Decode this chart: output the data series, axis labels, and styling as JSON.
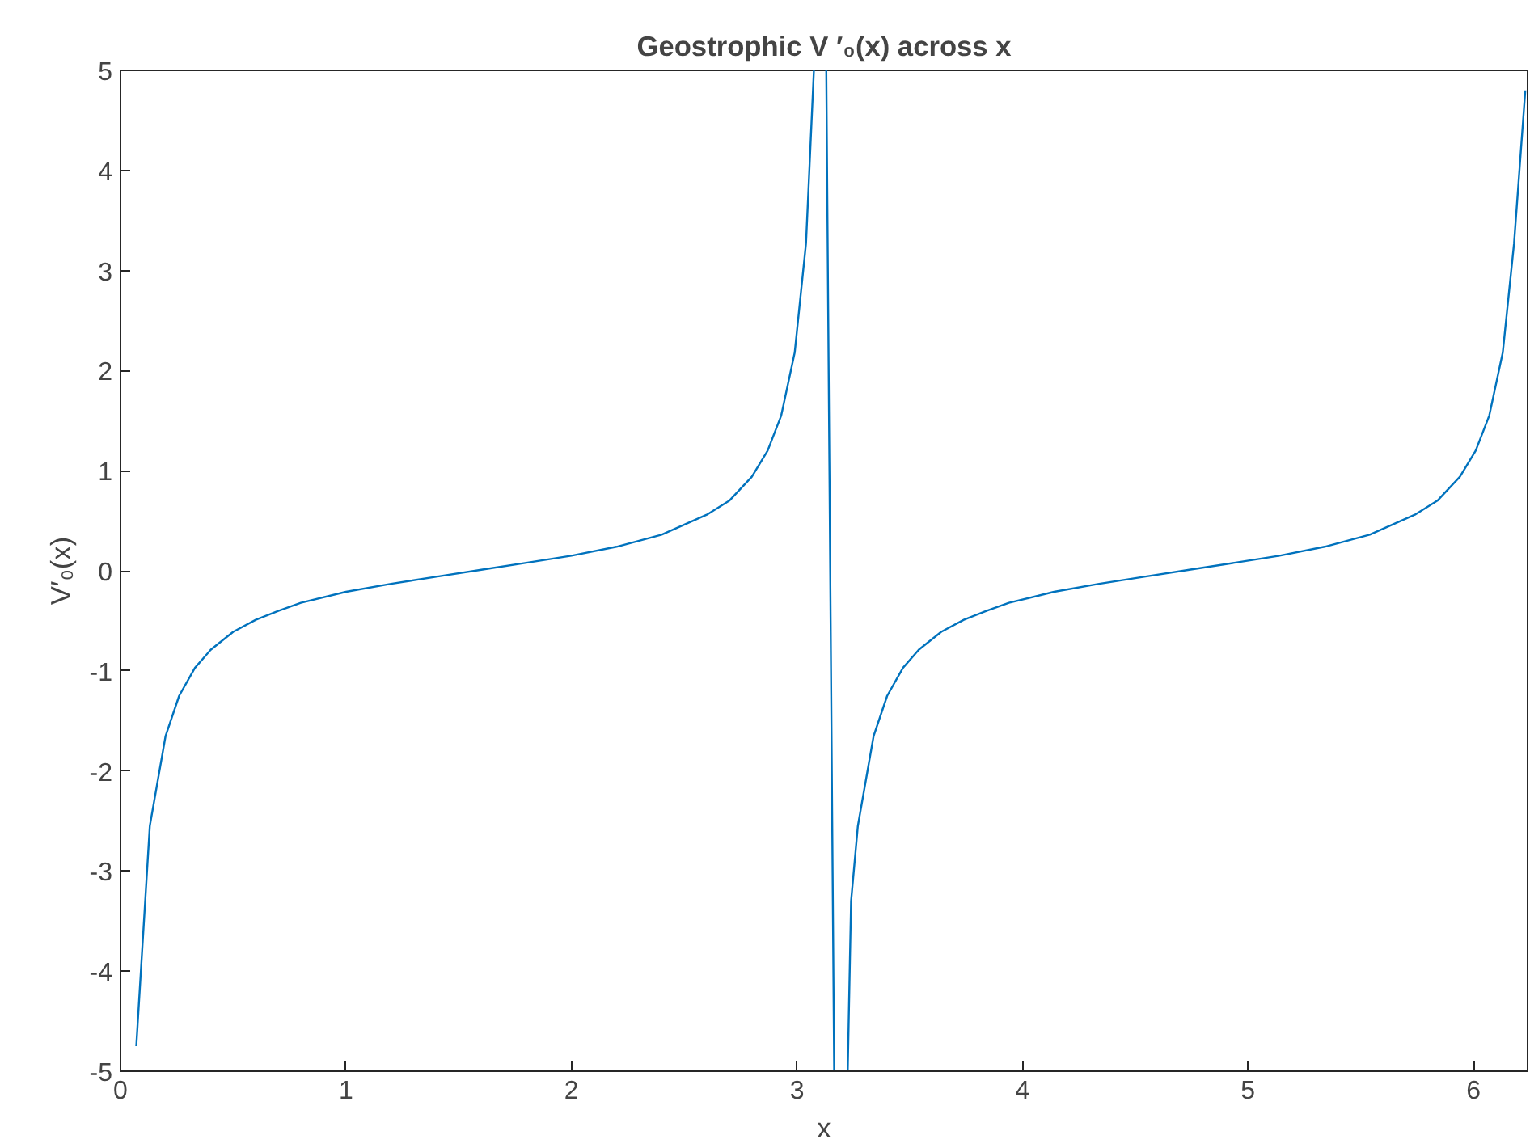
{
  "chart_data": {
    "type": "line",
    "title": "Geostrophic V ′₀(x) across x",
    "xlabel": "x",
    "ylabel": "V′₀(x)",
    "x": [
      0.07,
      0.13,
      0.2,
      0.26,
      0.33,
      0.4,
      0.5,
      0.6,
      0.7,
      0.8,
      1.0,
      1.2,
      1.4,
      1.6,
      1.8,
      2.0,
      2.2,
      2.4,
      2.6,
      2.7,
      2.8,
      2.87,
      2.93,
      2.99,
      3.04,
      3.075,
      3.1,
      3.13,
      3.165,
      3.2,
      3.225,
      3.24,
      3.27,
      3.34,
      3.4,
      3.47,
      3.54,
      3.64,
      3.74,
      3.84,
      3.94,
      4.14,
      4.34,
      4.54,
      4.74,
      4.94,
      5.14,
      5.34,
      5.54,
      5.74,
      5.84,
      5.94,
      6.01,
      6.07,
      6.13,
      6.18,
      6.23
    ],
    "series": [
      {
        "color": "#0072bd",
        "values": [
          -4.75,
          -2.55,
          -1.65,
          -1.25,
          -0.97,
          -0.79,
          -0.61,
          -0.49,
          -0.4,
          -0.32,
          -0.21,
          -0.13,
          -0.06,
          0.01,
          0.08,
          0.15,
          0.24,
          0.36,
          0.56,
          0.7,
          0.94,
          1.2,
          1.55,
          2.18,
          3.27,
          5,
          null,
          5,
          -5,
          null,
          -5,
          -3.3,
          -2.55,
          -1.65,
          -1.25,
          -0.97,
          -0.79,
          -0.61,
          -0.49,
          -0.4,
          -0.32,
          -0.21,
          -0.13,
          -0.06,
          0.01,
          0.08,
          0.15,
          0.24,
          0.36,
          0.56,
          0.7,
          0.94,
          1.2,
          1.55,
          2.18,
          3.27,
          4.8
        ]
      }
    ],
    "xlim": [
      0,
      6.24
    ],
    "ylim": [
      -5,
      5
    ],
    "xticks": [
      0,
      1,
      2,
      3,
      4,
      5,
      6
    ],
    "yticks": [
      -5,
      -4,
      -3,
      -2,
      -1,
      0,
      1,
      2,
      3,
      4,
      5
    ],
    "marker": "none",
    "line_style": "solid"
  }
}
